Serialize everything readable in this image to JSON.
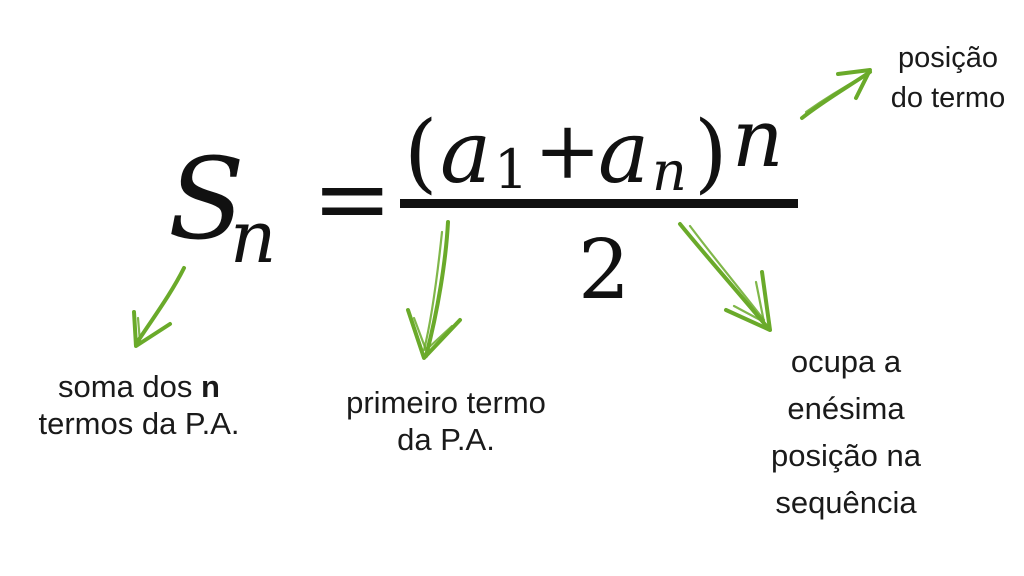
{
  "formula": {
    "lhs_symbol": "S",
    "lhs_subscript": "n",
    "equals": "=",
    "numerator_open": "(",
    "a1_symbol": "a",
    "a1_subscript": "1",
    "plus": "+",
    "an_symbol": "a",
    "an_subscript": "n",
    "numerator_close": ")",
    "numerator_factor": "n",
    "denominator": "2"
  },
  "annotations": {
    "sum": {
      "line1_prefix": "soma dos ",
      "line1_bold": "n",
      "line2": "termos da P.A."
    },
    "first_term": {
      "line1": "primeiro termo",
      "line2": "da P.A."
    },
    "nth_position": {
      "line1": "ocupa a",
      "line2": "enésima",
      "line3": "posição na",
      "line4": "sequência"
    },
    "term_position": {
      "line1": "posição",
      "line2": "do termo"
    }
  },
  "colors": {
    "arrow": "#6aaa2a",
    "text": "#1a1a1a",
    "formula": "#111111"
  }
}
